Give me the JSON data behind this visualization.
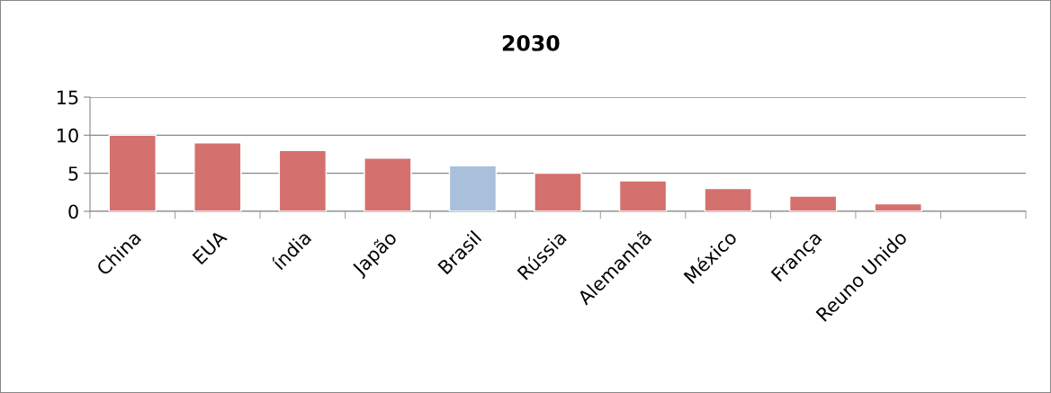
{
  "chart_data": {
    "type": "bar",
    "title": "2030",
    "categories": [
      "China",
      "EUA",
      "índia",
      "Japão",
      "Brasil",
      "Rússia",
      "Alemanhã",
      "México",
      "França",
      "Reuno Unido",
      null
    ],
    "values": [
      10,
      9,
      8,
      7,
      6,
      5,
      4,
      3,
      2,
      1,
      null
    ],
    "colors": [
      "#d4716e",
      "#d4716e",
      "#d4716e",
      "#d4716e",
      "#a9c0dd",
      "#d4716e",
      "#d4716e",
      "#d4716e",
      "#d4716e",
      "#d4716e",
      "#d4716e"
    ],
    "ylim": [
      0,
      15
    ],
    "yticks": [
      0,
      5,
      10,
      15
    ],
    "grid": "y"
  }
}
